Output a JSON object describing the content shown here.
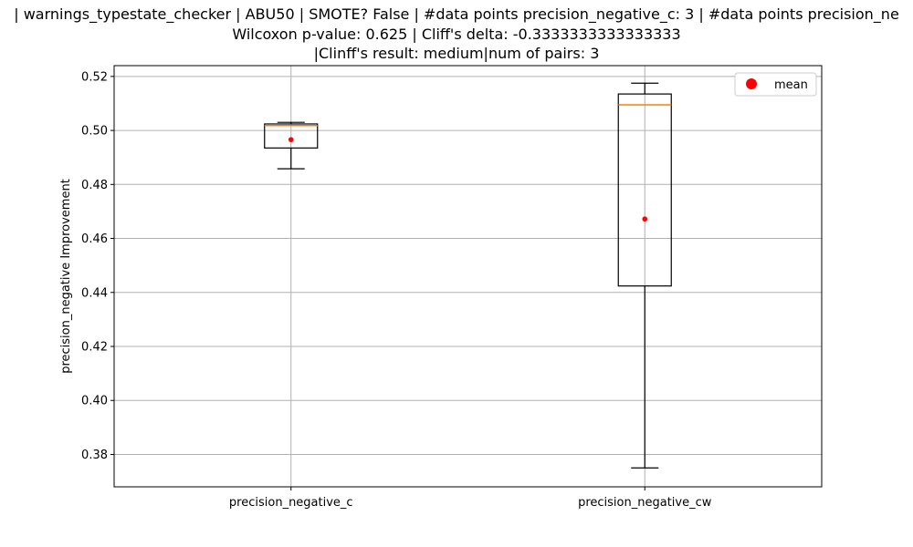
{
  "chart_data": {
    "type": "box",
    "title_lines": [
      "| warnings_typestate_checker | ABU50 | SMOTE? False | #data points precision_negative_c: 3 | #data points precision_ne",
      "Wilcoxon p-value: 0.625 | Cliff's delta: -0.3333333333333333",
      "|Clinff's result: medium|num of pairs: 3"
    ],
    "xlabel": "",
    "ylabel": "precision_negative Improvement",
    "ylim": [
      0.368,
      0.524
    ],
    "yticks": [
      0.38,
      0.4,
      0.42,
      0.44,
      0.46,
      0.48,
      0.5,
      0.52
    ],
    "grid": true,
    "legend": {
      "position": "top-right",
      "entries": [
        {
          "label": "mean",
          "color": "#ff0000"
        }
      ]
    },
    "categories": [
      "precision_negative_c",
      "precision_negative_cw"
    ],
    "boxes": [
      {
        "label": "precision_negative_c",
        "whisker_low": 0.4858,
        "q1": 0.4935,
        "median": 0.5018,
        "q3": 0.5024,
        "whisker_high": 0.503,
        "mean": 0.4966
      },
      {
        "label": "precision_negative_cw",
        "whisker_low": 0.375,
        "q1": 0.4424,
        "median": 0.5095,
        "q3": 0.5135,
        "whisker_high": 0.5175,
        "mean": 0.4672
      }
    ],
    "colors": {
      "box": "#000000",
      "median": "#ff7f0e",
      "mean": "#ff0000",
      "grid": "#b0b0b0"
    }
  }
}
